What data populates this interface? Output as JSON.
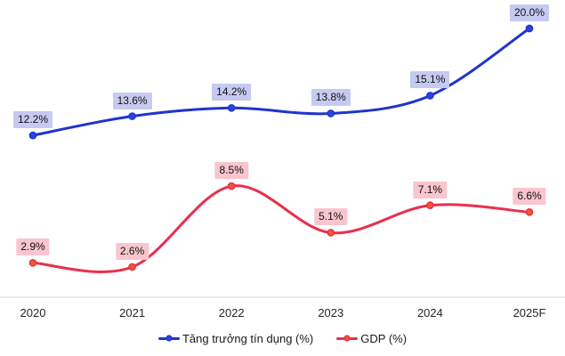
{
  "chart_data": {
    "type": "line",
    "title": "",
    "xlabel": "",
    "ylabel": "",
    "categories": [
      "2020",
      "2021",
      "2022",
      "2023",
      "2024",
      "2025F"
    ],
    "series": [
      {
        "name": "Tăng trưởng tín dụng (%)",
        "values": [
          12.2,
          13.6,
          14.2,
          13.8,
          15.1,
          20.0
        ],
        "labels": [
          "12.2%",
          "13.6%",
          "14.2%",
          "13.8%",
          "15.1%",
          "20.0%"
        ],
        "color": "#2134CB",
        "marker_fill": "#2B46E0",
        "label_bg": "#C6CAF1"
      },
      {
        "name": "GDP (%)",
        "values": [
          2.9,
          2.6,
          8.5,
          5.1,
          7.1,
          6.6
        ],
        "labels": [
          "2.9%",
          "2.6%",
          "8.5%",
          "5.1%",
          "7.1%",
          "6.6%"
        ],
        "color": "#E8304C",
        "marker_fill": "#F0572F",
        "label_bg": "#F9C5CE"
      }
    ],
    "ylim": [
      0,
      22
    ],
    "grid": false,
    "y_axis_visible": false,
    "axis_color": "#DADADA",
    "tick_color": "#262626",
    "legend_position": "bottom",
    "smooth": true
  }
}
